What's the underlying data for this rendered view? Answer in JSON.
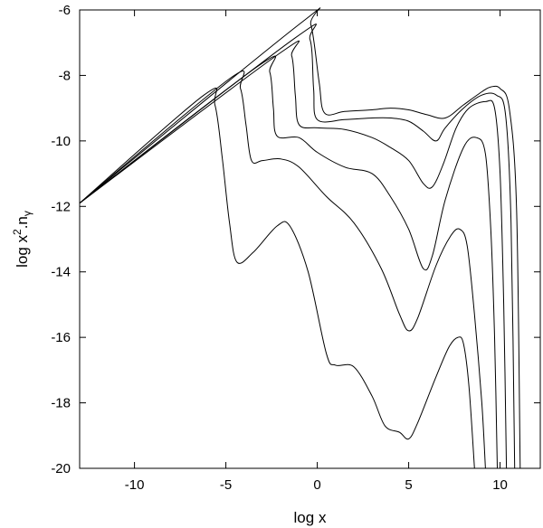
{
  "chart_data": {
    "type": "line",
    "title": "",
    "xlabel": "log x",
    "ylabel_main": "log x",
    "ylabel_sup": "2",
    "ylabel_mid": ".n",
    "ylabel_sub": "γ",
    "xlim": [
      -13,
      12.2
    ],
    "ylim": [
      -20,
      -6
    ],
    "xticks": [
      -10,
      -5,
      0,
      5,
      10
    ],
    "xtick_labels": [
      "-10",
      "-5",
      "0",
      "5",
      "10"
    ],
    "yticks": [
      -20,
      -18,
      -16,
      -14,
      -12,
      -10,
      -8,
      -6
    ],
    "ytick_labels": [
      "-20",
      "-18",
      "-16",
      "-14",
      "-12",
      "-10",
      "-8",
      "-6"
    ],
    "grid": false,
    "legend": "none",
    "series": [
      {
        "points": [
          [
            -13,
            -11.9
          ],
          [
            -6.2,
            -8.6
          ],
          [
            -5.6,
            -8.9
          ],
          [
            -5.2,
            -10.5
          ],
          [
            -4.8,
            -12.5
          ],
          [
            -4.4,
            -13.7
          ],
          [
            -3.5,
            -13.4
          ],
          [
            -2.2,
            -12.6
          ],
          [
            -1.5,
            -12.6
          ],
          [
            -0.5,
            -14.0
          ],
          [
            0.5,
            -16.5
          ],
          [
            1.0,
            -16.85
          ],
          [
            2.0,
            -16.9
          ],
          [
            3.0,
            -17.8
          ],
          [
            3.7,
            -18.7
          ],
          [
            4.5,
            -18.9
          ],
          [
            5.0,
            -19.1
          ],
          [
            5.5,
            -18.6
          ],
          [
            6.5,
            -17.2
          ],
          [
            7.2,
            -16.3
          ],
          [
            7.7,
            -16.0
          ],
          [
            8.0,
            -16.2
          ],
          [
            8.3,
            -17.5
          ],
          [
            8.6,
            -20.0
          ]
        ]
      },
      {
        "points": [
          [
            -13,
            -11.9
          ],
          [
            -4.8,
            -8.1
          ],
          [
            -4.2,
            -8.4
          ],
          [
            -3.9,
            -9.5
          ],
          [
            -3.6,
            -10.6
          ],
          [
            -3.0,
            -10.6
          ],
          [
            -2.0,
            -10.55
          ],
          [
            -1.0,
            -10.8
          ],
          [
            0.5,
            -11.7
          ],
          [
            2.0,
            -12.5
          ],
          [
            3.5,
            -13.9
          ],
          [
            4.5,
            -15.3
          ],
          [
            5.0,
            -15.8
          ],
          [
            5.5,
            -15.4
          ],
          [
            6.5,
            -13.8
          ],
          [
            7.3,
            -12.9
          ],
          [
            7.8,
            -12.7
          ],
          [
            8.2,
            -13.2
          ],
          [
            8.6,
            -15.3
          ],
          [
            9.0,
            -18.0
          ],
          [
            9.2,
            -20.0
          ]
        ]
      },
      {
        "points": [
          [
            -13,
            -11.9
          ],
          [
            -3.2,
            -7.7
          ],
          [
            -2.6,
            -7.9
          ],
          [
            -2.4,
            -9.0
          ],
          [
            -2.2,
            -9.85
          ],
          [
            -1.0,
            -9.9
          ],
          [
            0.0,
            -10.35
          ],
          [
            1.5,
            -10.8
          ],
          [
            3.0,
            -11.0
          ],
          [
            4.0,
            -11.7
          ],
          [
            5.0,
            -12.7
          ],
          [
            5.8,
            -13.9
          ],
          [
            6.3,
            -13.5
          ],
          [
            7.0,
            -11.8
          ],
          [
            8.0,
            -10.2
          ],
          [
            8.7,
            -9.9
          ],
          [
            9.2,
            -10.4
          ],
          [
            9.5,
            -12.8
          ],
          [
            9.7,
            -16.0
          ],
          [
            9.85,
            -20.0
          ]
        ]
      },
      {
        "points": [
          [
            -13,
            -11.9
          ],
          [
            -2.0,
            -7.3
          ],
          [
            -1.4,
            -7.4
          ],
          [
            -1.2,
            -8.6
          ],
          [
            -1.0,
            -9.5
          ],
          [
            0.0,
            -9.6
          ],
          [
            1.5,
            -9.65
          ],
          [
            3.0,
            -9.9
          ],
          [
            4.0,
            -10.2
          ],
          [
            5.0,
            -10.6
          ],
          [
            5.8,
            -11.3
          ],
          [
            6.3,
            -11.4
          ],
          [
            6.9,
            -10.7
          ],
          [
            7.6,
            -9.6
          ],
          [
            8.3,
            -9.0
          ],
          [
            9.2,
            -8.8
          ],
          [
            9.7,
            -9.0
          ],
          [
            10.0,
            -11.0
          ],
          [
            10.2,
            -15.0
          ],
          [
            10.35,
            -20.0
          ]
        ]
      },
      {
        "points": [
          [
            -13,
            -11.9
          ],
          [
            -1.2,
            -6.85
          ],
          [
            -0.4,
            -6.9
          ],
          [
            -0.2,
            -8.4
          ],
          [
            0.0,
            -9.35
          ],
          [
            1.5,
            -9.35
          ],
          [
            3.0,
            -9.3
          ],
          [
            4.0,
            -9.3
          ],
          [
            5.0,
            -9.4
          ],
          [
            5.8,
            -9.7
          ],
          [
            6.5,
            -10.0
          ],
          [
            7.0,
            -9.6
          ],
          [
            8.0,
            -9.0
          ],
          [
            9.0,
            -8.6
          ],
          [
            9.8,
            -8.6
          ],
          [
            10.3,
            -9.2
          ],
          [
            10.6,
            -12.5
          ],
          [
            10.8,
            -20.0
          ]
        ]
      },
      {
        "points": [
          [
            -13,
            -11.9
          ],
          [
            -0.9,
            -6.4
          ],
          [
            -0.35,
            -6.45
          ],
          [
            0.1,
            -8.2
          ],
          [
            0.4,
            -9.15
          ],
          [
            1.5,
            -9.1
          ],
          [
            3.0,
            -9.05
          ],
          [
            4.0,
            -9.0
          ],
          [
            5.0,
            -9.05
          ],
          [
            6.0,
            -9.2
          ],
          [
            7.0,
            -9.3
          ],
          [
            8.0,
            -8.9
          ],
          [
            9.0,
            -8.5
          ],
          [
            9.5,
            -8.35
          ],
          [
            10.0,
            -8.4
          ],
          [
            10.5,
            -9.0
          ],
          [
            10.9,
            -12.0
          ],
          [
            11.1,
            -20.0
          ]
        ]
      }
    ]
  }
}
